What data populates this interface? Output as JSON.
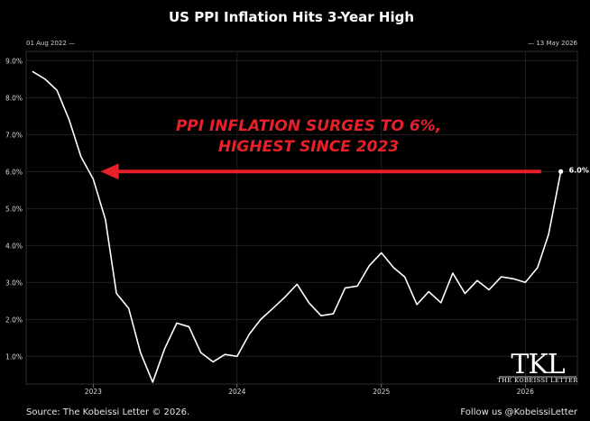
{
  "chart_data": {
    "type": "line",
    "title": "US PPI Inflation Hits 3-Year High",
    "range_start_label": "01 Aug 2022 —",
    "range_end_label": "— 13 May 2026",
    "y_ticks": [
      "9.0%",
      "8.0%",
      "7.0%",
      "6.0%",
      "5.0%",
      "4.0%",
      "3.0%",
      "2.0%",
      "1.0%"
    ],
    "y_tick_values": [
      9,
      8,
      7,
      6,
      5,
      4,
      3,
      2,
      1
    ],
    "ylim": [
      0.25,
      9.25
    ],
    "x_ticks": [
      "2023",
      "2024",
      "2025",
      "2026"
    ],
    "x_tick_values": [
      "2023-01-01",
      "2024-01-01",
      "2025-01-01",
      "2026-01-01"
    ],
    "xlim": [
      "2022-07-15",
      "2026-05-13"
    ],
    "grid": true,
    "series": [
      {
        "color": "#ffffff",
        "x": [
          "2022-08-01",
          "2022-09-01",
          "2022-10-01",
          "2022-11-01",
          "2022-12-01",
          "2023-01-01",
          "2023-02-01",
          "2023-03-01",
          "2023-04-01",
          "2023-05-01",
          "2023-06-01",
          "2023-07-01",
          "2023-08-01",
          "2023-09-01",
          "2023-10-01",
          "2023-11-01",
          "2023-12-01",
          "2024-01-01",
          "2024-02-01",
          "2024-03-01",
          "2024-04-01",
          "2024-05-01",
          "2024-06-01",
          "2024-07-01",
          "2024-08-01",
          "2024-09-01",
          "2024-10-01",
          "2024-11-01",
          "2024-12-01",
          "2025-01-01",
          "2025-02-01",
          "2025-03-01",
          "2025-04-01",
          "2025-05-01",
          "2025-06-01",
          "2025-07-01",
          "2025-08-01",
          "2025-09-01",
          "2025-10-01",
          "2025-11-01",
          "2025-12-01",
          "2026-01-01",
          "2026-02-01",
          "2026-03-01",
          "2026-04-01"
        ],
        "values": [
          8.7,
          8.5,
          8.2,
          7.4,
          6.4,
          5.8,
          4.7,
          2.7,
          2.3,
          1.1,
          0.3,
          1.2,
          1.9,
          1.8,
          1.1,
          0.85,
          1.05,
          1.0,
          1.6,
          2.0,
          2.3,
          2.6,
          2.95,
          2.45,
          2.1,
          2.15,
          2.85,
          2.9,
          3.45,
          3.8,
          3.4,
          3.15,
          2.4,
          2.75,
          2.45,
          3.25,
          2.7,
          3.05,
          2.8,
          3.15,
          3.1,
          3.0,
          3.4,
          4.3,
          6.0
        ]
      }
    ],
    "point_label": {
      "x": "2026-04-01",
      "value": 6.0,
      "text": "6.0%"
    },
    "annotation": {
      "lines": [
        "PPI INFLATION SURGES TO 6%,",
        "HIGHEST SINCE 2023"
      ],
      "color": "#e8202a",
      "arrow_to_value": 6.0
    }
  },
  "footer": {
    "source": "Source: The Kobeissi Letter © 2026.",
    "follow": "Follow us @KobeissiLetter"
  },
  "logo": {
    "mark": "TKL",
    "name": "THE KOBEISSI LETTER"
  }
}
